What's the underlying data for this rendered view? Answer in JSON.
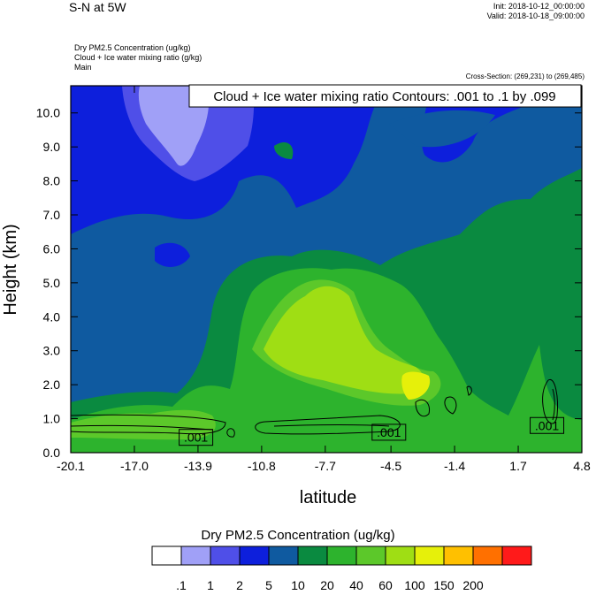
{
  "header": {
    "title": "S-N at 5W",
    "init": "Init: 2018-10-12_00:00:00",
    "valid": "Valid: 2018-10-18_09:00:00",
    "fields": [
      "Dry PM2.5 Concentration   (ug/kg)",
      "Cloud + Ice water mixing ratio   (g/kg)",
      "Main"
    ],
    "cross_section": "Cross-Section: (269,231) to (269,485)"
  },
  "chart_data": {
    "type": "heatmap",
    "title": "Cloud + Ice water mixing ratio Contours: .001 to .1 by .099",
    "xlabel": "latitude",
    "ylabel": "Height (km)",
    "xticks": [
      "-20.1",
      "-17.0",
      "-13.9",
      "-10.8",
      "-7.7",
      "-4.5",
      "-1.4",
      "1.7",
      "4.8"
    ],
    "yticks": [
      "0.0",
      "1.0",
      "2.0",
      "3.0",
      "4.0",
      "5.0",
      "6.0",
      "7.0",
      "8.0",
      "9.0",
      "10.0"
    ],
    "xlim": [
      -20.1,
      4.8
    ],
    "ylim": [
      0,
      10.8
    ],
    "contour_labels": [
      {
        "text": ".001",
        "x": -14.0,
        "y": 0.45
      },
      {
        "text": ".001",
        "x": -4.6,
        "y": 0.6
      },
      {
        "text": ".001",
        "x": 3.1,
        "y": 0.8
      }
    ],
    "colorbar": {
      "title": "Dry PM2.5 Concentration  (ug/kg)",
      "levels": [
        ".1",
        "1",
        "2",
        "5",
        "10",
        "20",
        "40",
        "60",
        "100",
        "150",
        "200"
      ],
      "colors": [
        "#ffffff",
        "#a0a0f7",
        "#4f4fe8",
        "#0d1fdc",
        "#0f5aa0",
        "#0a8a40",
        "#2db32d",
        "#5cc82a",
        "#9fde14",
        "#e6f00a",
        "#ffc000",
        "#ff7000",
        "#ff1a1a"
      ]
    }
  }
}
